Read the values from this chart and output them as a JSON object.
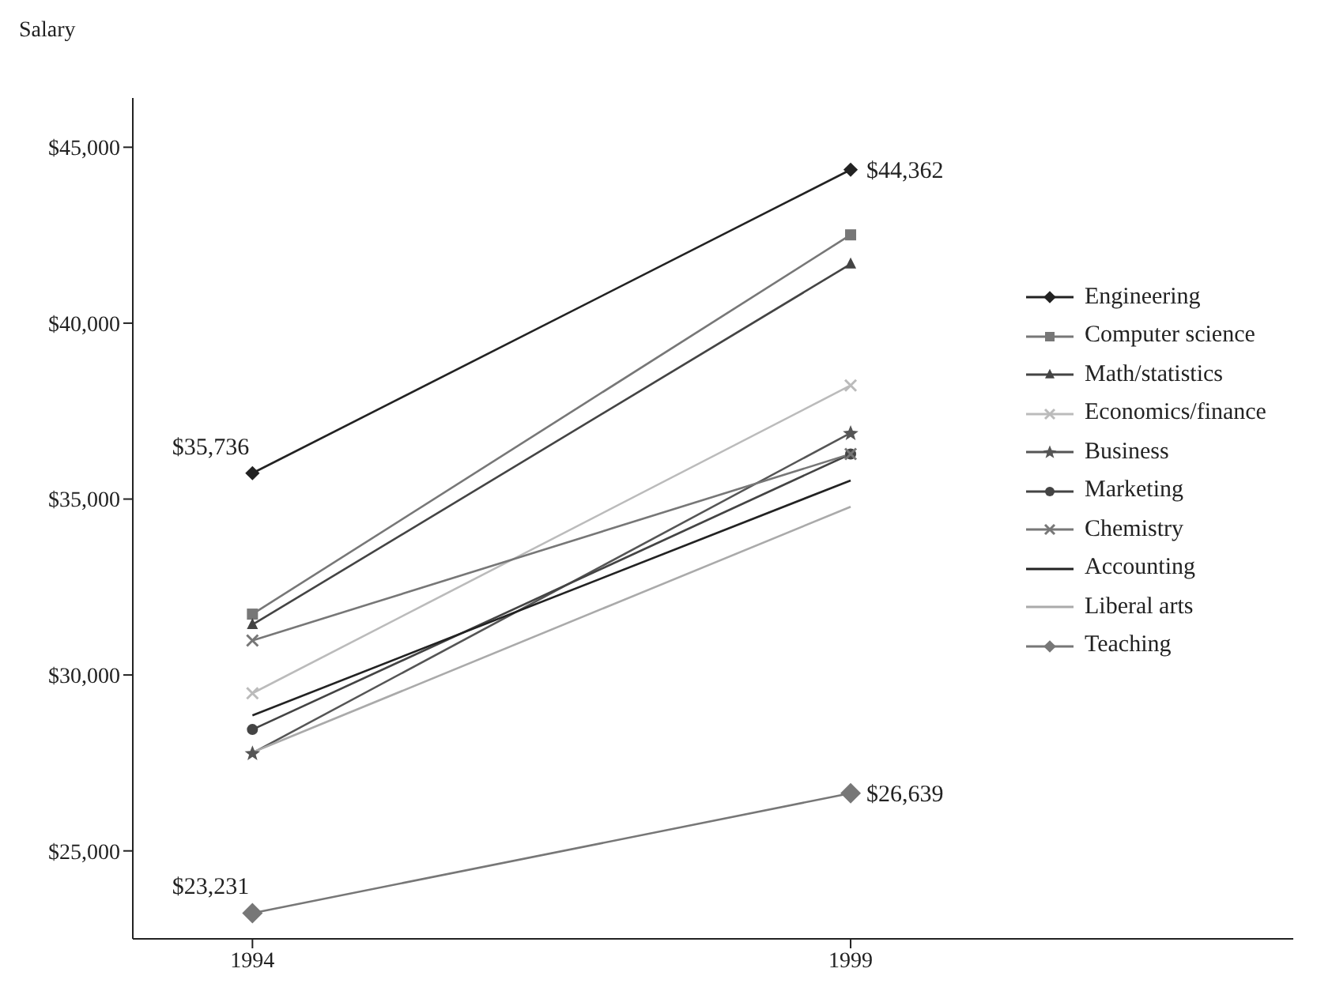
{
  "chart_data": {
    "type": "line",
    "ylabel": "Salary",
    "x": [
      1994,
      1999
    ],
    "xlim": [
      1993,
      2002.7
    ],
    "xticks": [
      1994,
      1999
    ],
    "ylim": [
      22500,
      46400
    ],
    "yticks": [
      {
        "value": 25000,
        "label": "$25,000"
      },
      {
        "value": 30000,
        "label": "$30,000"
      },
      {
        "value": 35000,
        "label": "$35,000"
      },
      {
        "value": 40000,
        "label": "$40,000"
      },
      {
        "value": 45000,
        "label": "$45,000"
      }
    ],
    "grid": false,
    "legend": "right",
    "line_style": "solid",
    "series": [
      {
        "name": "Engineering",
        "color": "#222222",
        "marker": "diamond",
        "values": [
          35736,
          44362
        ],
        "value_labels": [
          "$35,736",
          "$44,362"
        ]
      },
      {
        "name": "Computer science",
        "color": "#777777",
        "marker": "square",
        "values": [
          31730,
          42510
        ]
      },
      {
        "name": "Math/statistics",
        "color": "#444444",
        "marker": "triangle",
        "values": [
          31430,
          41680
        ]
      },
      {
        "name": "Economics/finance",
        "color": "#bbbbbb",
        "marker": "cross",
        "values": [
          29480,
          38230
        ]
      },
      {
        "name": "Business",
        "color": "#555555",
        "marker": "star",
        "values": [
          27780,
          36880
        ]
      },
      {
        "name": "Marketing",
        "color": "#444444",
        "marker": "circle",
        "values": [
          28450,
          36280
        ]
      },
      {
        "name": "Chemistry",
        "color": "#777777",
        "marker": "cross",
        "values": [
          30980,
          36280
        ]
      },
      {
        "name": "Accounting",
        "color": "#222222",
        "marker": "none",
        "values": [
          28850,
          35530
        ]
      },
      {
        "name": "Liberal arts",
        "color": "#aaaaaa",
        "marker": "none",
        "values": [
          27800,
          34780
        ]
      },
      {
        "name": "Teaching",
        "color": "#777777",
        "marker": "diamond",
        "values": [
          23231,
          26639
        ],
        "value_labels": [
          "$23,231",
          "$26,639"
        ]
      }
    ]
  }
}
